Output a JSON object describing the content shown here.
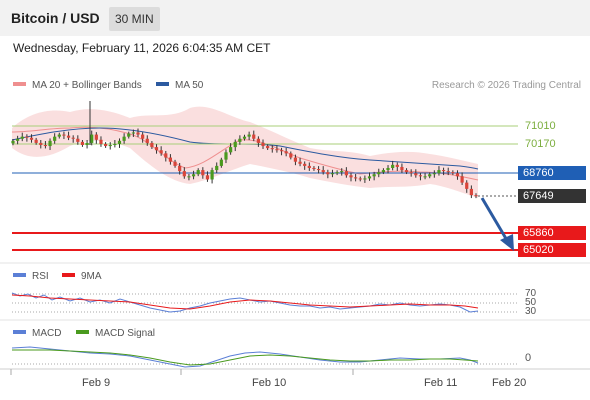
{
  "header": {
    "pair": "Bitcoin / USD",
    "timeframe": "30 MIN"
  },
  "datetime": "Wednesday, February 11, 2026 6:04:35 AM CET",
  "legend": {
    "ma20": {
      "label": "MA 20 + Bollinger Bands",
      "color": "#ef8f8f"
    },
    "ma50": {
      "label": "MA 50",
      "color": "#2c5aa0"
    },
    "credit": "Research © 2026 Trading Central"
  },
  "levels": [
    {
      "value": "71010",
      "style": "text",
      "color": "#7cae3f"
    },
    {
      "value": "70170",
      "style": "text",
      "color": "#7cae3f"
    },
    {
      "value": "68760",
      "style": "box",
      "color": "#1f5fb5"
    },
    {
      "value": "67649",
      "style": "box",
      "color": "#333333"
    },
    {
      "value": "65860",
      "style": "box",
      "color": "#e8191b"
    },
    {
      "value": "65020",
      "style": "box",
      "color": "#e8191b"
    }
  ],
  "rsi_panel": {
    "rsi_label": "RSI",
    "rsi_color": "#5b7fd6",
    "ma_label": "9MA",
    "ma_color": "#e8191b",
    "levels": [
      "70",
      "50",
      "30"
    ]
  },
  "macd_panel": {
    "macd_label": "MACD",
    "macd_color": "#5b7fd6",
    "signal_label": "MACD Signal",
    "signal_color": "#4a9a1e",
    "zero_label": "0"
  },
  "x_axis": [
    "Feb 9",
    "Feb 10",
    "Feb 11",
    "Feb 20"
  ],
  "chart_data": {
    "type": "candlestick",
    "title": "Bitcoin / USD",
    "interval": "30 MIN",
    "approx_close": [
      70300,
      70400,
      70500,
      70450,
      70350,
      70200,
      70100,
      70050,
      70300,
      70500,
      70600,
      70550,
      70450,
      70400,
      70250,
      70100,
      70200,
      70600,
      70350,
      70150,
      70050,
      70100,
      70150,
      70300,
      70500,
      70650,
      70700,
      70600,
      70400,
      70200,
      70000,
      69850,
      69700,
      69500,
      69300,
      69100,
      68850,
      68600,
      68600,
      68700,
      68900,
      68650,
      68450,
      68900,
      69100,
      69400,
      69750,
      70000,
      70250,
      70400,
      70500,
      70600,
      70400,
      70200,
      70050,
      69950,
      69900,
      69850,
      69800,
      69700,
      69500,
      69300,
      69200,
      69100,
      69000,
      68950,
      68900,
      68800,
      68700,
      68750,
      68800,
      68850,
      68650,
      68550,
      68500,
      68450,
      68500,
      68600,
      68700,
      68800,
      68900,
      69000,
      69150,
      69050,
      68900,
      68800,
      68750,
      68650,
      68600,
      68600,
      68700,
      68750,
      68900,
      68850,
      68800,
      68750,
      68600,
      68300,
      68000,
      67700,
      67649
    ],
    "key_levels": [
      71010,
      70170,
      68760,
      67649,
      65860,
      65020
    ],
    "current_price": 67649,
    "bias": "bearish",
    "ma50_approx": [
      69800,
      69850,
      69900,
      70000,
      70100,
      70200,
      70200,
      70150,
      70050,
      69900,
      69750,
      69550,
      69350,
      69150,
      69000,
      68900,
      68850,
      68800,
      68750,
      68700,
      68650,
      68600,
      68550,
      68500,
      68500,
      68400,
      68200
    ],
    "rsi": {
      "levels": [
        70,
        50,
        30
      ]
    },
    "macd": {
      "zero_line": 0
    },
    "x_labels": [
      "Feb 9",
      "Feb 10",
      "Feb 11",
      "Feb 20"
    ]
  }
}
